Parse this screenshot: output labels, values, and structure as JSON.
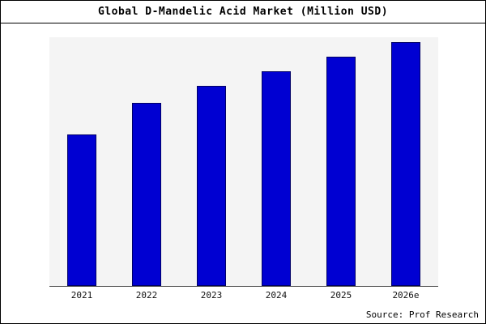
{
  "title": "Global D-Mandelic Acid Market (Million USD)",
  "source": "Source: Prof Research",
  "colors": {
    "bar_fill": "#0000D2",
    "bar_border": "#000066",
    "plot_bg": "#F4F4F4",
    "frame_border": "#000000"
  },
  "chart_data": {
    "type": "bar",
    "title": "Global D-Mandelic Acid Market (Million USD)",
    "categories": [
      "2021",
      "2022",
      "2023",
      "2024",
      "2025",
      "2026e"
    ],
    "values": [
      62,
      75,
      82,
      88,
      94,
      100
    ],
    "xlabel": "",
    "ylabel": "",
    "ylim": [
      0,
      102
    ],
    "grid": false,
    "legend": false,
    "value_scale": "relative, no y-axis ticks shown; tallest bar (2026e) = 100"
  }
}
